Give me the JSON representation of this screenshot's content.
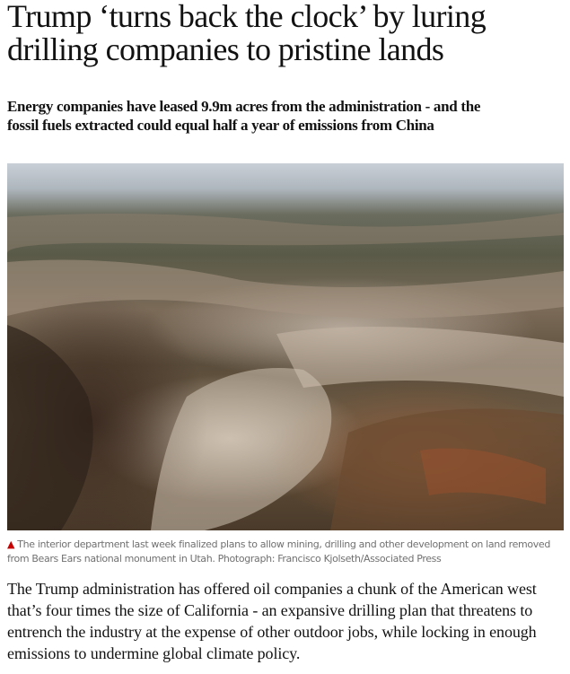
{
  "article": {
    "headline": "Trump ‘turns back the clock’ by luring drilling companies to pristine lands",
    "standfirst": "Energy companies have leased 9.9m acres from the administration - and the fossil fuels extracted could equal half a year of emissions from China",
    "image": {
      "caption": "The interior department last week finalized plans to allow mining, drilling and other development on land removed from Bears Ears national monument in Utah. Photograph: Francisco Kjolseth/Associated Press",
      "caption_icon": "triangle-up-icon",
      "caption_icon_color": "#c70000"
    },
    "body": "The Trump administration has offered oil companies a chunk of the American west that’s four times the size of California - an expansive drilling plan that threatens to entrench the industry at the expense of other outdoor jobs, while locking in enough emissions to undermine global climate policy."
  }
}
